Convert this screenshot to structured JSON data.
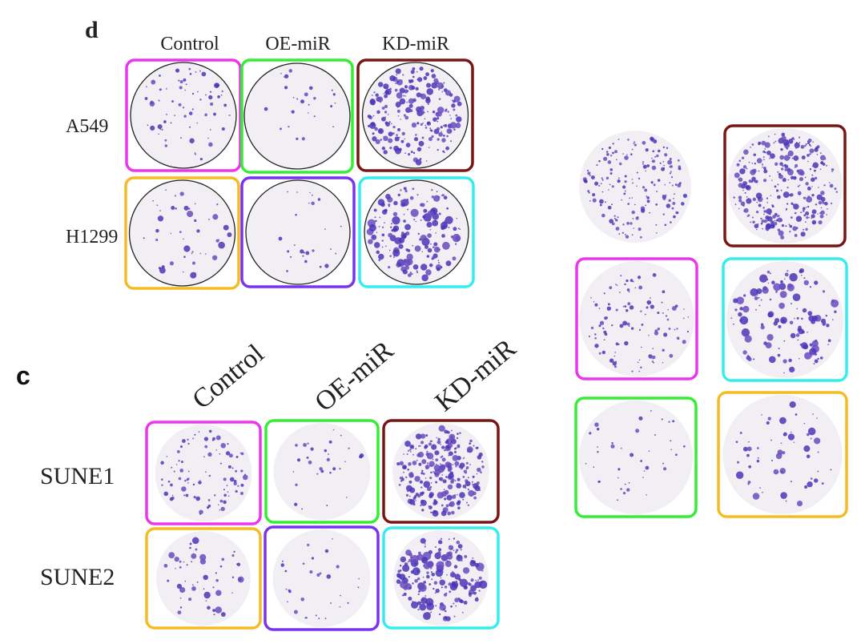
{
  "panel_d": {
    "label": "d",
    "columns": [
      "Control",
      "OE-miR",
      "KD-miR"
    ],
    "rows": [
      "A549",
      "H1299"
    ]
  },
  "panel_c": {
    "label": "c",
    "columns": [
      "Control",
      "OE-miR",
      "KD-miR"
    ],
    "rows": [
      "SUNE1",
      "SUNE2"
    ]
  }
}
